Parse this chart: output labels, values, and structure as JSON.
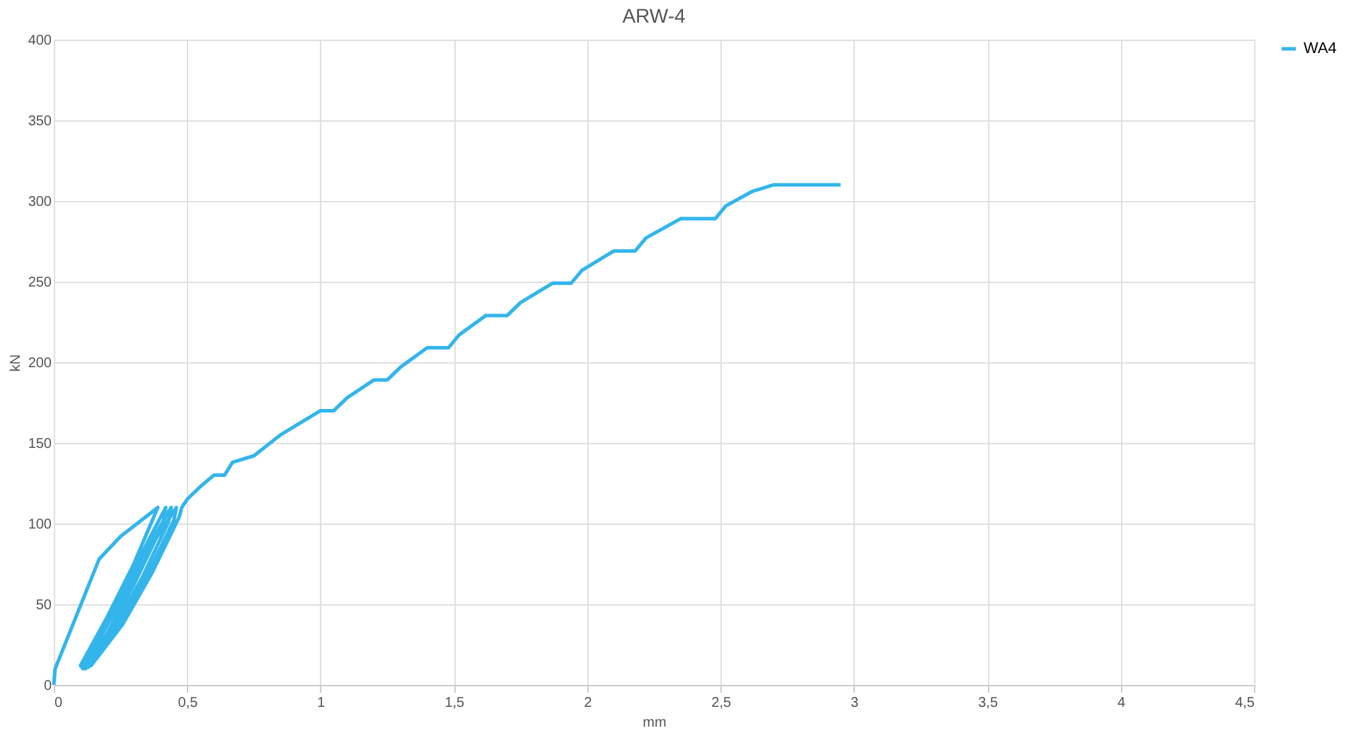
{
  "chart_data": {
    "type": "line",
    "title": "ARW-4",
    "xlabel": "mm",
    "ylabel": "kN",
    "xlim": [
      0,
      4.5
    ],
    "ylim": [
      0,
      400
    ],
    "xticks": [
      0,
      {
        "value": 0.5,
        "label": "0,5"
      },
      1,
      {
        "value": 1.5,
        "label": "1,5"
      },
      2,
      {
        "value": 2.5,
        "label": "2,5"
      },
      3,
      {
        "value": 3.5,
        "label": "3,5"
      },
      4,
      {
        "value": 4.5,
        "label": "4,5"
      }
    ],
    "yticks": [
      0,
      50,
      100,
      150,
      200,
      250,
      300,
      350,
      400
    ],
    "grid": true,
    "legend": "right",
    "marker": "none",
    "line_style": "solid",
    "series": [
      {
        "name": "WA4",
        "color": "#33b5eb",
        "x": [
          0,
          0.005,
          0.17,
          0.25,
          0.39,
          0.3,
          0.2,
          0.1,
          0.11,
          0.2,
          0.3,
          0.41,
          0.42,
          0.35,
          0.25,
          0.12,
          0.12,
          0.22,
          0.33,
          0.43,
          0.44,
          0.37,
          0.26,
          0.13,
          0.13,
          0.24,
          0.35,
          0.45,
          0.46,
          0.38,
          0.27,
          0.11,
          0.14,
          0.26,
          0.37,
          0.47,
          0.48,
          0.5,
          0.55,
          0.6,
          0.64,
          0.67,
          0.75,
          0.85,
          1.0,
          1.05,
          1.1,
          1.2,
          1.25,
          1.3,
          1.4,
          1.48,
          1.52,
          1.62,
          1.7,
          1.75,
          1.87,
          1.94,
          1.98,
          2.1,
          2.18,
          2.22,
          2.35,
          2.48,
          2.52,
          2.62,
          2.7,
          2.95
        ],
        "values": [
          0,
          10,
          78,
          92,
          110,
          75,
          42,
          12,
          10,
          32,
          62,
          100,
          110,
          88,
          55,
          14,
          10,
          34,
          66,
          101,
          110,
          90,
          56,
          15,
          11,
          36,
          68,
          102,
          110,
          90,
          57,
          11,
          12,
          38,
          70,
          104,
          110,
          115,
          123,
          130,
          130,
          138,
          142,
          155,
          170,
          170,
          178,
          189,
          189,
          197,
          209,
          209,
          217,
          229,
          229,
          237,
          249,
          249,
          257,
          269,
          269,
          277,
          289,
          289,
          297,
          306,
          310,
          310
        ]
      }
    ]
  }
}
